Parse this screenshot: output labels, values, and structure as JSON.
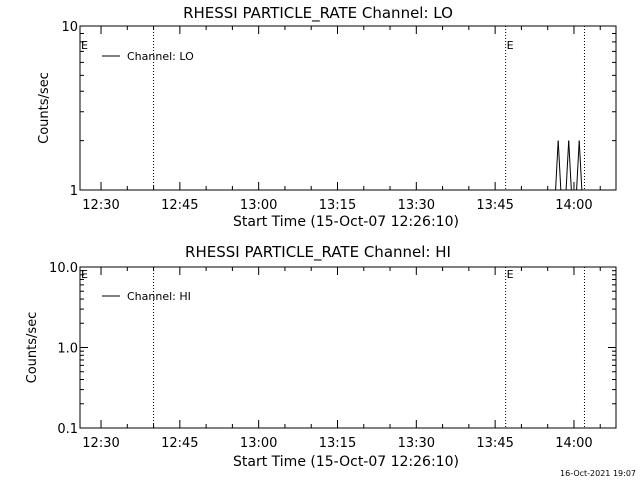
{
  "footer_timestamp": "16-Oct-2021 19:07",
  "chart_data": [
    {
      "type": "line",
      "title": "RHESSI PARTICLE_RATE Channel: LO",
      "xlabel": "Start Time (15-Oct-07 12:26:10)",
      "ylabel": "Counts/sec",
      "y_scale": "log",
      "xlim": [
        "12:26",
        "14:08"
      ],
      "ylim": [
        1,
        10
      ],
      "x_ticks": [
        "12:30",
        "12:45",
        "13:00",
        "13:15",
        "13:30",
        "13:45",
        "14:00"
      ],
      "y_ticks": [
        "1",
        "10"
      ],
      "legend": {
        "placement": "top-left",
        "entries": [
          "Channel: LO"
        ]
      },
      "vertical_markers": [
        {
          "time": "12:40",
          "style": "dotted",
          "label": "E"
        },
        {
          "time": "13:47",
          "style": "dotted",
          "label": "E"
        },
        {
          "time": "14:02",
          "style": "dotted",
          "label": ""
        }
      ],
      "series": [
        {
          "name": "Channel: LO",
          "points": [
            {
              "t": "13:56:30",
              "y": 1
            },
            {
              "t": "13:57:00",
              "y": 2
            },
            {
              "t": "13:57:30",
              "y": 1
            },
            {
              "t": "13:58:30",
              "y": 1
            },
            {
              "t": "13:59:00",
              "y": 2
            },
            {
              "t": "13:59:30",
              "y": 1
            },
            {
              "t": "14:00:30",
              "y": 1
            },
            {
              "t": "14:01:00",
              "y": 2
            },
            {
              "t": "14:01:30",
              "y": 1
            }
          ]
        }
      ]
    },
    {
      "type": "line",
      "title": "RHESSI PARTICLE_RATE Channel: HI",
      "xlabel": "Start Time (15-Oct-07 12:26:10)",
      "ylabel": "Counts/sec",
      "y_scale": "log",
      "xlim": [
        "12:26",
        "14:08"
      ],
      "ylim": [
        0.1,
        10
      ],
      "x_ticks": [
        "12:30",
        "12:45",
        "13:00",
        "13:15",
        "13:30",
        "13:45",
        "14:00"
      ],
      "y_ticks": [
        "0.1",
        "1.0",
        "10.0"
      ],
      "legend": {
        "placement": "top-left",
        "entries": [
          "Channel: HI"
        ]
      },
      "vertical_markers": [
        {
          "time": "12:40",
          "style": "dotted",
          "label": "E"
        },
        {
          "time": "13:47",
          "style": "dotted",
          "label": "E"
        },
        {
          "time": "14:02",
          "style": "dotted",
          "label": ""
        }
      ],
      "series": [
        {
          "name": "Channel: HI",
          "points": []
        }
      ]
    }
  ]
}
